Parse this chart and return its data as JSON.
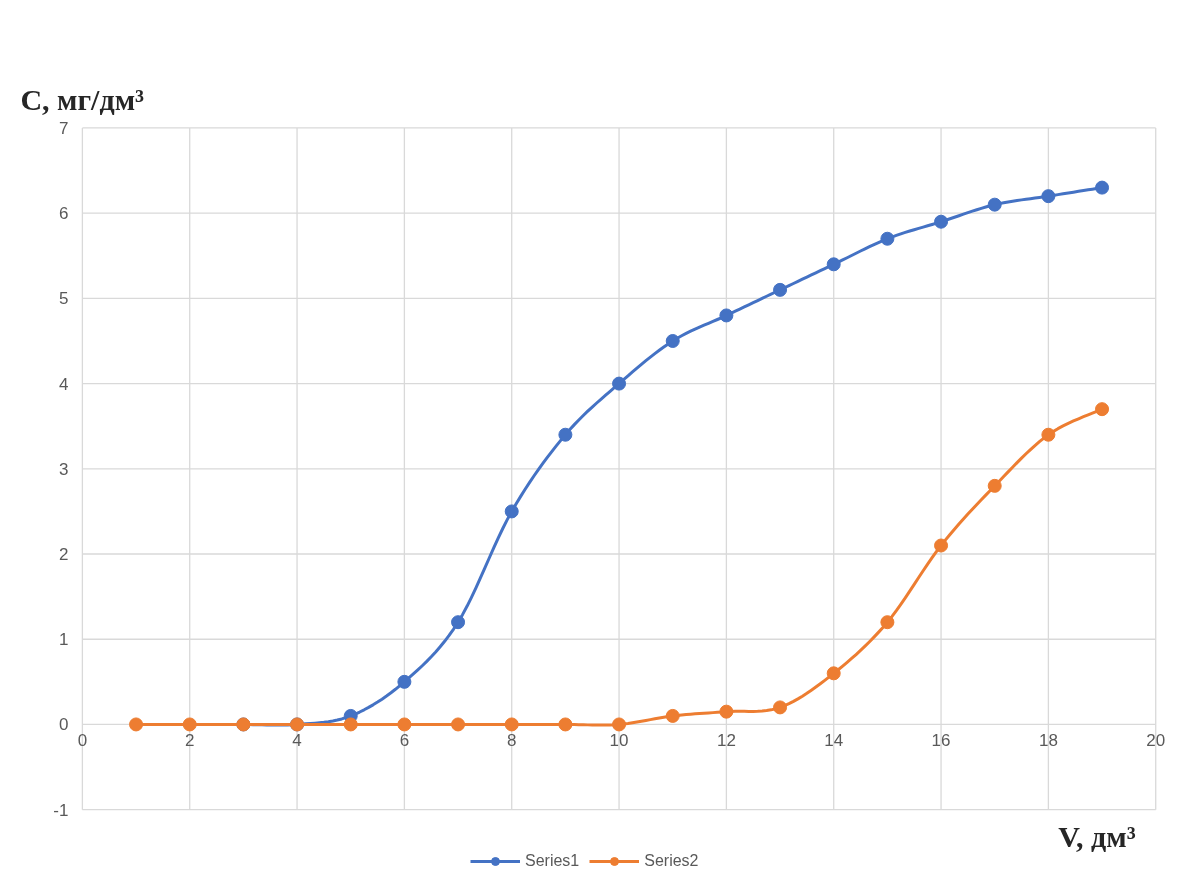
{
  "chart_data": {
    "type": "line",
    "xlabel": "V, дм³",
    "ylabel": "C, мг/дм³",
    "xlim": [
      0,
      20
    ],
    "ylim": [
      -1,
      7
    ],
    "xticks": [
      0,
      2,
      4,
      6,
      8,
      10,
      12,
      14,
      16,
      18,
      20
    ],
    "yticks": [
      -1,
      0,
      1,
      2,
      3,
      4,
      5,
      6,
      7
    ],
    "grid": true,
    "legend": "bottom",
    "marker": "circle",
    "line_style": "solid",
    "x": [
      1,
      2,
      3,
      4,
      5,
      6,
      7,
      8,
      9,
      10,
      11,
      12,
      13,
      14,
      15,
      16,
      17,
      18,
      19
    ],
    "series": [
      {
        "name": "Series1",
        "color": "#4472c4",
        "values": [
          null,
          null,
          0,
          0,
          0.1,
          0.5,
          1.2,
          2.5,
          3.4,
          4.0,
          4.5,
          4.8,
          5.1,
          5.4,
          5.7,
          5.9,
          6.1,
          6.2,
          6.3
        ]
      },
      {
        "name": "Series2",
        "color": "#ed7d31",
        "values": [
          0,
          0,
          0,
          0,
          0,
          0,
          0,
          0,
          0,
          0,
          0.1,
          0.15,
          0.2,
          0.6,
          1.2,
          2.1,
          2.8,
          3.4,
          3.7
        ]
      }
    ]
  }
}
